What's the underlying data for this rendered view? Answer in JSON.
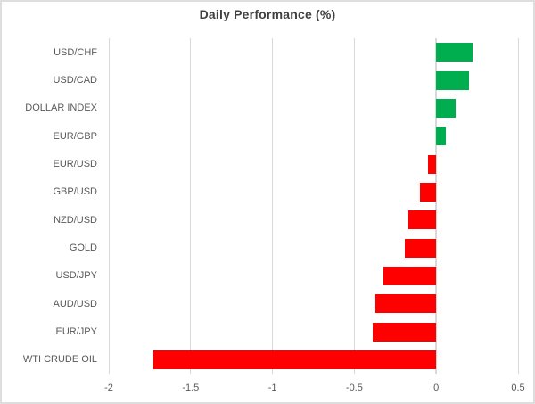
{
  "chart_data": {
    "type": "bar",
    "orientation": "horizontal",
    "title": "Daily Performance (%)",
    "categories": [
      "USD/CHF",
      "USD/CAD",
      "DOLLAR INDEX",
      "EUR/GBP",
      "EUR/USD",
      "GBP/USD",
      "NZD/USD",
      "GOLD",
      "USD/JPY",
      "AUD/USD",
      "EUR/JPY",
      "WTI CRUDE OIL"
    ],
    "values": [
      0.22,
      0.2,
      0.12,
      0.06,
      -0.05,
      -0.1,
      -0.17,
      -0.19,
      -0.32,
      -0.37,
      -0.39,
      -1.73
    ],
    "x_ticks": [
      -2,
      -1.5,
      -1,
      -0.5,
      0,
      0.5
    ],
    "x_tick_labels": [
      "-2",
      "-1.5",
      "-1",
      "-0.5",
      "0",
      "0.5"
    ],
    "xlim": [
      -2,
      0.5
    ],
    "grid": true,
    "legend": false,
    "colors": {
      "positive": "#00AE50",
      "negative": "#FF0000",
      "gridline": "#D9D9D9",
      "title": "#404040",
      "label": "#595959",
      "border": "#DEDEDE"
    }
  }
}
